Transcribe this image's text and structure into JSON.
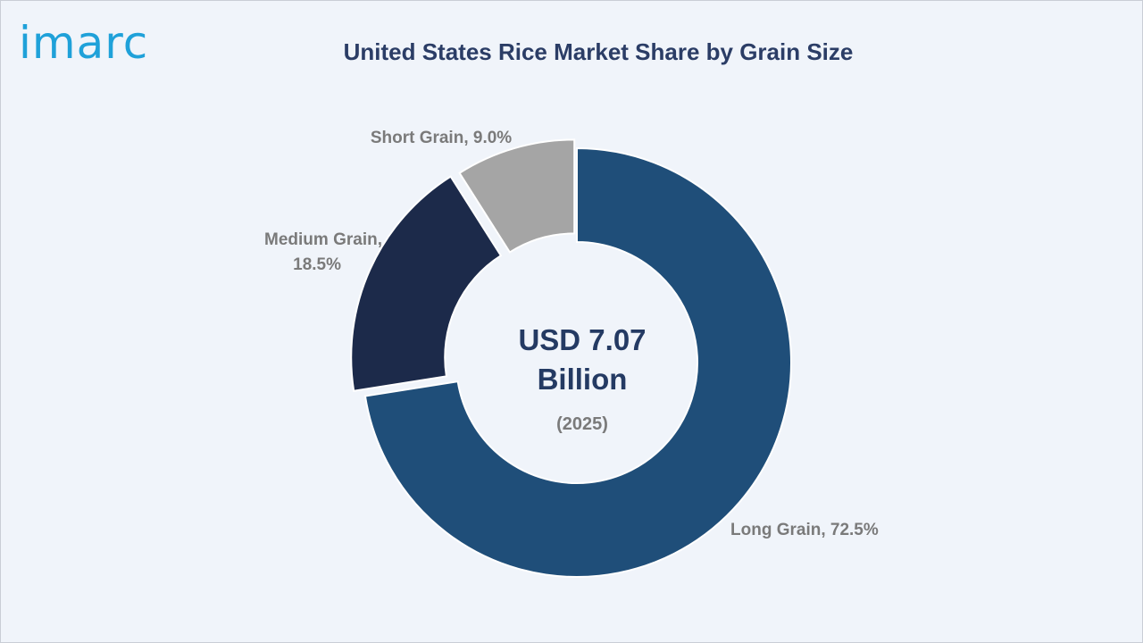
{
  "brand": {
    "logo_text": "imarc",
    "logo_color": "#1fa1d9"
  },
  "chart_data": {
    "type": "pie",
    "title": "United States Rice Market Share by Grain Size",
    "center_value_line1": "USD 7.07",
    "center_value_line2": "Billion",
    "center_year": "(2025)",
    "slices": [
      {
        "label": "Long Grain",
        "value": 72.5,
        "display": "Long Grain, 72.5%",
        "color": "#1f4e79"
      },
      {
        "label": "Medium Grain",
        "value": 18.5,
        "display_lines": [
          "Medium Grain,",
          "18.5%"
        ],
        "color": "#1c2a4a"
      },
      {
        "label": "Short Grain",
        "value": 9.0,
        "display": "Short Grain, 9.0%",
        "color": "#a5a5a5"
      }
    ]
  }
}
